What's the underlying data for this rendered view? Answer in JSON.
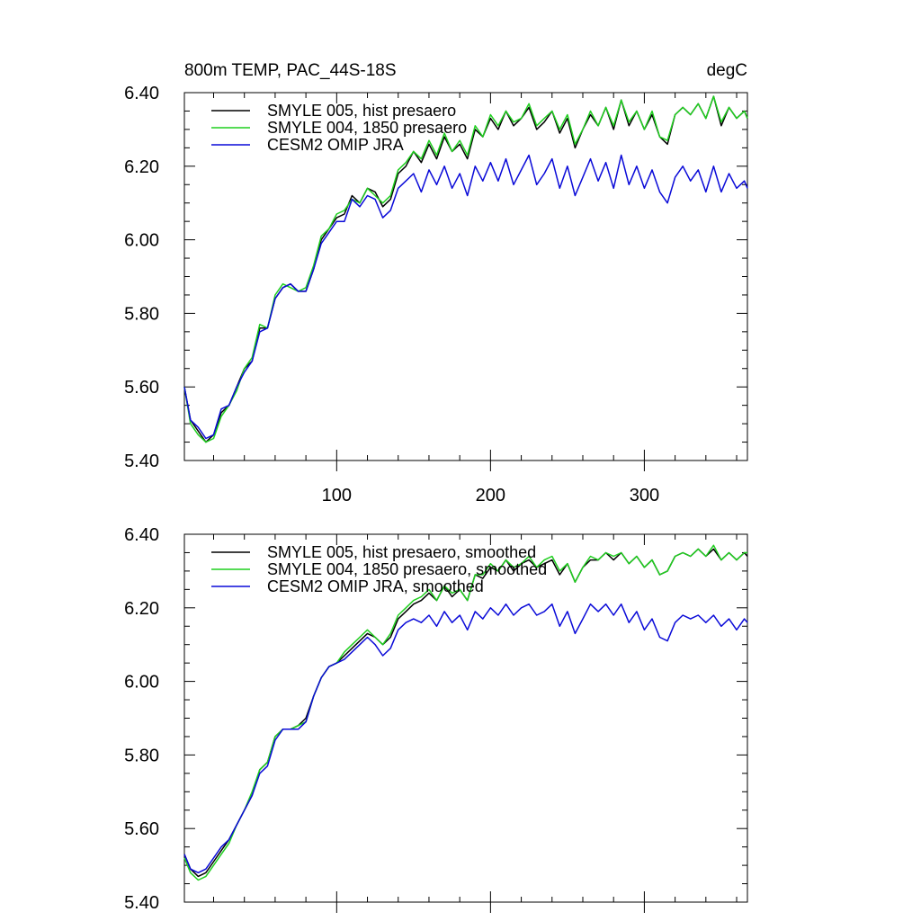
{
  "colors": {
    "black": "#000000",
    "green": "#1fcf1f",
    "blue": "#0a0ad8"
  },
  "chart_data": [
    {
      "type": "line",
      "title_left": "800m TEMP, PAC_44S-18S",
      "title_right": "degC",
      "xlim": [
        1,
        367
      ],
      "ylim": [
        5.4,
        6.4
      ],
      "grid": false,
      "legend_placement": "top-left",
      "x_ticks": [
        100,
        200,
        300
      ],
      "y_ticks": [
        "5.40",
        "5.60",
        "5.80",
        "6.00",
        "6.20",
        "6.40"
      ],
      "x_tick_labels_shown": true,
      "x": [
        1,
        5,
        10,
        15,
        20,
        25,
        30,
        35,
        40,
        45,
        50,
        55,
        60,
        65,
        70,
        75,
        80,
        85,
        90,
        95,
        100,
        105,
        110,
        115,
        120,
        125,
        130,
        135,
        140,
        145,
        150,
        155,
        160,
        165,
        170,
        175,
        180,
        185,
        190,
        195,
        200,
        205,
        210,
        215,
        220,
        225,
        230,
        235,
        240,
        245,
        250,
        255,
        260,
        265,
        270,
        275,
        280,
        285,
        290,
        295,
        300,
        305,
        310,
        315,
        320,
        325,
        330,
        335,
        340,
        345,
        350,
        355,
        360,
        365,
        367
      ],
      "series": [
        {
          "name": "SMYLE 005, hist presaero",
          "color": "#000000",
          "values": [
            5.6,
            5.51,
            5.48,
            5.45,
            5.47,
            5.53,
            5.55,
            5.6,
            5.65,
            5.67,
            5.76,
            5.76,
            5.84,
            5.87,
            5.88,
            5.86,
            5.86,
            5.92,
            6.0,
            6.03,
            6.06,
            6.07,
            6.12,
            6.1,
            6.14,
            6.13,
            6.09,
            6.11,
            6.18,
            6.2,
            6.24,
            6.21,
            6.26,
            6.22,
            6.28,
            6.24,
            6.26,
            6.22,
            6.3,
            6.28,
            6.33,
            6.3,
            6.35,
            6.31,
            6.33,
            6.36,
            6.3,
            6.32,
            6.35,
            6.29,
            6.33,
            6.25,
            6.3,
            6.34,
            6.31,
            6.36,
            6.3,
            6.38,
            6.31,
            6.35,
            6.3,
            6.34,
            6.28,
            6.26,
            6.34,
            6.36,
            6.34,
            6.37,
            6.33,
            6.39,
            6.31,
            6.36,
            6.33,
            6.35,
            6.33
          ]
        },
        {
          "name": "SMYLE 004, 1850 presaero",
          "color": "#1fcf1f",
          "values": [
            5.6,
            5.5,
            5.47,
            5.45,
            5.46,
            5.52,
            5.55,
            5.59,
            5.65,
            5.68,
            5.77,
            5.76,
            5.85,
            5.88,
            5.87,
            5.86,
            5.87,
            5.93,
            6.01,
            6.03,
            6.07,
            6.08,
            6.11,
            6.1,
            6.14,
            6.12,
            6.1,
            6.12,
            6.19,
            6.21,
            6.24,
            6.22,
            6.27,
            6.23,
            6.29,
            6.24,
            6.27,
            6.23,
            6.31,
            6.28,
            6.34,
            6.31,
            6.35,
            6.32,
            6.33,
            6.37,
            6.31,
            6.33,
            6.35,
            6.3,
            6.34,
            6.26,
            6.3,
            6.35,
            6.31,
            6.36,
            6.31,
            6.38,
            6.32,
            6.35,
            6.3,
            6.35,
            6.28,
            6.27,
            6.34,
            6.36,
            6.34,
            6.37,
            6.33,
            6.39,
            6.32,
            6.36,
            6.33,
            6.35,
            6.33
          ]
        },
        {
          "name": "CESM2 OMIP JRA",
          "color": "#0a0ad8",
          "values": [
            5.6,
            5.51,
            5.49,
            5.46,
            5.47,
            5.54,
            5.55,
            5.6,
            5.64,
            5.67,
            5.75,
            5.76,
            5.84,
            5.87,
            5.88,
            5.86,
            5.86,
            5.92,
            5.99,
            6.02,
            6.05,
            6.05,
            6.11,
            6.09,
            6.12,
            6.11,
            6.06,
            6.08,
            6.14,
            6.16,
            6.18,
            6.13,
            6.19,
            6.15,
            6.2,
            6.14,
            6.18,
            6.12,
            6.2,
            6.16,
            6.21,
            6.16,
            6.22,
            6.15,
            6.19,
            6.23,
            6.15,
            6.18,
            6.22,
            6.14,
            6.2,
            6.12,
            6.17,
            6.22,
            6.16,
            6.21,
            6.14,
            6.23,
            6.15,
            6.2,
            6.14,
            6.19,
            6.13,
            6.1,
            6.17,
            6.2,
            6.16,
            6.19,
            6.13,
            6.2,
            6.13,
            6.18,
            6.14,
            6.16,
            6.14
          ]
        }
      ]
    },
    {
      "type": "line",
      "xlim": [
        1,
        367
      ],
      "ylim": [
        5.4,
        6.4
      ],
      "grid": false,
      "legend_placement": "top-left",
      "x_ticks": [
        100,
        200,
        300
      ],
      "y_ticks": [
        "5.40",
        "5.60",
        "5.80",
        "6.00",
        "6.20",
        "6.40"
      ],
      "x_tick_labels_shown": false,
      "x": [
        1,
        5,
        10,
        15,
        20,
        25,
        30,
        35,
        40,
        45,
        50,
        55,
        60,
        65,
        70,
        75,
        80,
        85,
        90,
        95,
        100,
        105,
        110,
        115,
        120,
        125,
        130,
        135,
        140,
        145,
        150,
        155,
        160,
        165,
        170,
        175,
        180,
        185,
        190,
        195,
        200,
        205,
        210,
        215,
        220,
        225,
        230,
        235,
        240,
        245,
        250,
        255,
        260,
        265,
        270,
        275,
        280,
        285,
        290,
        295,
        300,
        305,
        310,
        315,
        320,
        325,
        330,
        335,
        340,
        345,
        350,
        355,
        360,
        365,
        367
      ],
      "series": [
        {
          "name": "SMYLE 005, hist presaero, smoothed",
          "color": "#000000",
          "values": [
            5.53,
            5.49,
            5.47,
            5.48,
            5.51,
            5.54,
            5.57,
            5.61,
            5.65,
            5.69,
            5.76,
            5.78,
            5.85,
            5.87,
            5.87,
            5.88,
            5.9,
            5.96,
            6.01,
            6.04,
            6.05,
            6.07,
            6.09,
            6.11,
            6.13,
            6.12,
            6.1,
            6.12,
            6.17,
            6.19,
            6.21,
            6.22,
            6.24,
            6.22,
            6.26,
            6.23,
            6.25,
            6.22,
            6.29,
            6.28,
            6.31,
            6.3,
            6.33,
            6.3,
            6.32,
            6.33,
            6.31,
            6.32,
            6.33,
            6.29,
            6.32,
            6.27,
            6.31,
            6.33,
            6.33,
            6.35,
            6.33,
            6.35,
            6.32,
            6.34,
            6.31,
            6.33,
            6.29,
            6.3,
            6.34,
            6.35,
            6.34,
            6.36,
            6.34,
            6.36,
            6.33,
            6.35,
            6.33,
            6.35,
            6.34
          ]
        },
        {
          "name": "SMYLE 004, 1850 presaero, smoothed",
          "color": "#1fcf1f",
          "values": [
            5.52,
            5.48,
            5.46,
            5.47,
            5.5,
            5.53,
            5.56,
            5.61,
            5.65,
            5.7,
            5.76,
            5.78,
            5.85,
            5.87,
            5.87,
            5.88,
            5.89,
            5.96,
            6.01,
            6.04,
            6.05,
            6.08,
            6.1,
            6.12,
            6.14,
            6.12,
            6.1,
            6.13,
            6.18,
            6.2,
            6.22,
            6.23,
            6.25,
            6.22,
            6.26,
            6.24,
            6.25,
            6.22,
            6.29,
            6.29,
            6.32,
            6.3,
            6.33,
            6.31,
            6.32,
            6.34,
            6.31,
            6.33,
            6.34,
            6.3,
            6.32,
            6.27,
            6.31,
            6.34,
            6.33,
            6.35,
            6.34,
            6.35,
            6.32,
            6.34,
            6.31,
            6.33,
            6.29,
            6.3,
            6.34,
            6.35,
            6.34,
            6.36,
            6.34,
            6.37,
            6.33,
            6.35,
            6.33,
            6.35,
            6.35
          ]
        },
        {
          "name": "CESM2 OMIP JRA, smoothed",
          "color": "#0a0ad8",
          "values": [
            5.53,
            5.49,
            5.48,
            5.49,
            5.52,
            5.55,
            5.57,
            5.61,
            5.65,
            5.69,
            5.75,
            5.77,
            5.84,
            5.87,
            5.87,
            5.87,
            5.89,
            5.96,
            6.01,
            6.04,
            6.05,
            6.06,
            6.08,
            6.1,
            6.12,
            6.1,
            6.07,
            6.09,
            6.14,
            6.16,
            6.17,
            6.16,
            6.18,
            6.15,
            6.19,
            6.16,
            6.18,
            6.14,
            6.19,
            6.17,
            6.2,
            6.18,
            6.21,
            6.18,
            6.2,
            6.21,
            6.18,
            6.19,
            6.21,
            6.15,
            6.19,
            6.13,
            6.17,
            6.21,
            6.19,
            6.21,
            6.18,
            6.21,
            6.16,
            6.19,
            6.14,
            6.17,
            6.12,
            6.11,
            6.16,
            6.18,
            6.17,
            6.18,
            6.16,
            6.18,
            6.15,
            6.17,
            6.14,
            6.17,
            6.16
          ]
        }
      ]
    }
  ]
}
